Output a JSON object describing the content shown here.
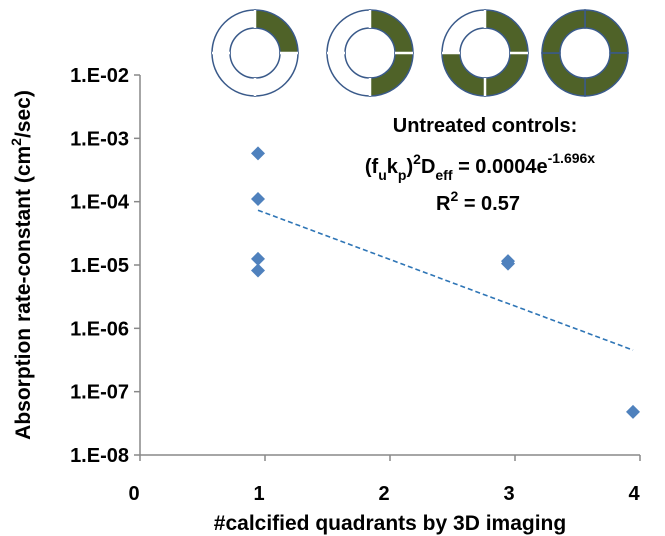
{
  "chart_data": {
    "type": "scatter",
    "xlabel": "#calcified quadrants by 3D imaging",
    "ylabel": "Absorption rate-constant (cm",
    "ylabel_sup": "2",
    "ylabel_end": "/sec)",
    "xlim": [
      0,
      4
    ],
    "x_ticks": [
      "0",
      "1",
      "2",
      "3",
      "4"
    ],
    "ylim": [
      1e-08,
      0.01
    ],
    "y_scale": "log",
    "y_ticks": [
      "1.E-08",
      "1.E-07",
      "1.E-06",
      "1.E-05",
      "1.E-04",
      "1.E-03",
      "1.E-02"
    ],
    "grid": false,
    "points": [
      {
        "x": 1,
        "y": 0.00058
      },
      {
        "x": 1,
        "y": 0.00011
      },
      {
        "x": 1,
        "y": 1.25e-05
      },
      {
        "x": 1,
        "y": 8.2e-06
      },
      {
        "x": 3,
        "y": 1.15e-05
      },
      {
        "x": 3,
        "y": 1.05e-05
      },
      {
        "x": 4,
        "y": 4.8e-08
      }
    ],
    "trendline": {
      "a": 0.0004,
      "b": -1.696,
      "x_start": 1,
      "x_end": 4
    },
    "marker_color": "#4f81bd",
    "trend_color": "#2e75b6",
    "annotation": {
      "line1": "Untreated controls:",
      "eq_paren_open": "(f",
      "eq_u": "u",
      "eq_k": "k",
      "eq_p": "p",
      "eq_paren_close": ")",
      "eq_sq": "2",
      "eq_D": "D",
      "eq_eff": "eff",
      "eq_rhs": " = 0.0004e",
      "eq_exp": "-1.696x",
      "r2_label": "R",
      "r2_sup": "2",
      "r2_value": " = 0.57"
    },
    "quadrant_icons": [
      {
        "calcified": 1
      },
      {
        "calcified": 2
      },
      {
        "calcified": 3
      },
      {
        "calcified": 4
      }
    ],
    "icon_fill": "#4f6228"
  }
}
